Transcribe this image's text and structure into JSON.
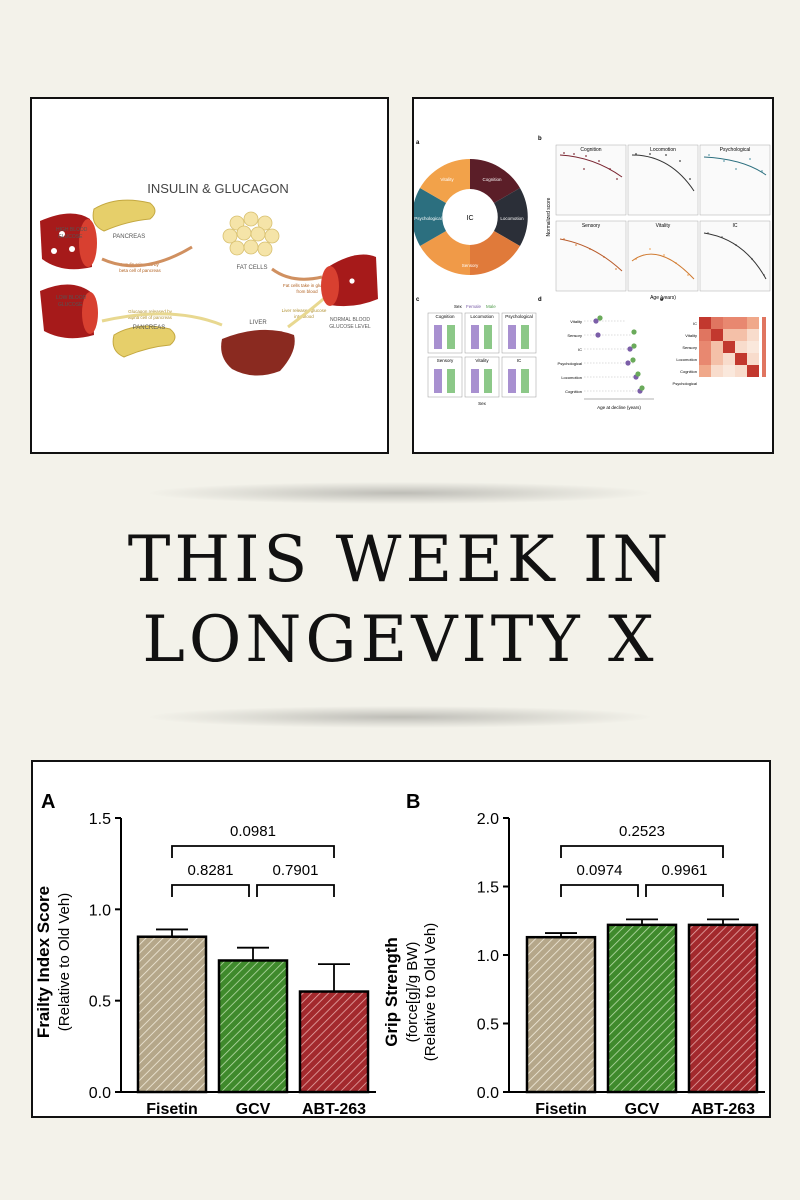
{
  "infographic": {
    "heading": "INSULIN & GLUCAGON",
    "labels": {
      "high": [
        "HIGH BLOOD",
        "GLUCOSE"
      ],
      "low": [
        "LOW BLOOD",
        "GLUCOSE"
      ],
      "pancreas_top": "PANCREAS",
      "pancreas_bottom": "PANCREAS",
      "fat_cells": "FAT CELLS",
      "liver": "LIVER",
      "normal": [
        "NORMAL BLOOD",
        "GLUCOSE LEVEL"
      ],
      "insulin_note": [
        "Insulin released by",
        "beta cell of pancreas"
      ],
      "glucagon_note": [
        "Glucagon released by",
        "alpha cell of pancreas"
      ],
      "fat_note": [
        "Fat cells take in glucose",
        "from blood"
      ],
      "liver_note": [
        "Liver releases glucose",
        "into blood"
      ]
    }
  },
  "research_figure": {
    "panel_letters": [
      "a",
      "b",
      "c",
      "d",
      "e"
    ],
    "wheel_center": "IC",
    "wheel_labels": [
      "Vitality",
      "Cognition",
      "Locomotion",
      "Sensory",
      "Psychological"
    ],
    "scatter_titles": [
      "Cognition",
      "Locomotion",
      "Psychological",
      "Sensory",
      "Vitality",
      "IC"
    ],
    "x_axis_label": "Age (years)",
    "y_axis_label": "Normalized score",
    "sex_legend": [
      "Sex",
      "Female",
      "Male"
    ],
    "decline_axis_label": "Age at decline (years)",
    "decline_domains": [
      "Vitality",
      "Sensory",
      "IC",
      "Psychological",
      "Locomotion",
      "Cognition"
    ],
    "heatmap_labels": [
      "IC",
      "Vitality",
      "Sensory",
      "Locomotion",
      "Cognition",
      "Psychological"
    ]
  },
  "title": {
    "line1": "THIS WEEK IN",
    "line2": "LONGEVITY X"
  },
  "colors": {
    "fisetin": "#b5a78a",
    "gcv": "#3f8a2c",
    "abt263": "#a3292d",
    "background": "#f3f2ea"
  },
  "chart_data": [
    {
      "type": "bar",
      "panel_label": "A",
      "ylabel_line1": "Frailty Index Score",
      "ylabel_line2": "(Relative to Old Veh)",
      "categories": [
        "Fisetin",
        "GCV",
        "ABT-263"
      ],
      "values": [
        0.85,
        0.72,
        0.55
      ],
      "errors": [
        0.04,
        0.07,
        0.15
      ],
      "ylim": [
        0,
        1.5
      ],
      "yticks": [
        "0.0",
        "0.5",
        "1.0",
        "1.5"
      ],
      "comparisons": [
        {
          "from": 0,
          "to": 2,
          "p": "0.0981"
        },
        {
          "from": 0,
          "to": 1,
          "p": "0.8281"
        },
        {
          "from": 1,
          "to": 2,
          "p": "0.7901"
        }
      ]
    },
    {
      "type": "bar",
      "panel_label": "B",
      "ylabel_line1": "Grip Strength",
      "ylabel_line2": "(force[g]/g BW)",
      "ylabel_line3": "(Relative to Old Veh)",
      "categories": [
        "Fisetin",
        "GCV",
        "ABT-263"
      ],
      "values": [
        1.13,
        1.22,
        1.22
      ],
      "errors": [
        0.03,
        0.04,
        0.04
      ],
      "ylim": [
        0,
        2.0
      ],
      "yticks": [
        "0.0",
        "0.5",
        "1.0",
        "1.5",
        "2.0"
      ],
      "comparisons": [
        {
          "from": 0,
          "to": 2,
          "p": "0.2523"
        },
        {
          "from": 0,
          "to": 1,
          "p": "0.0974"
        },
        {
          "from": 1,
          "to": 2,
          "p": "0.9961"
        }
      ]
    }
  ]
}
